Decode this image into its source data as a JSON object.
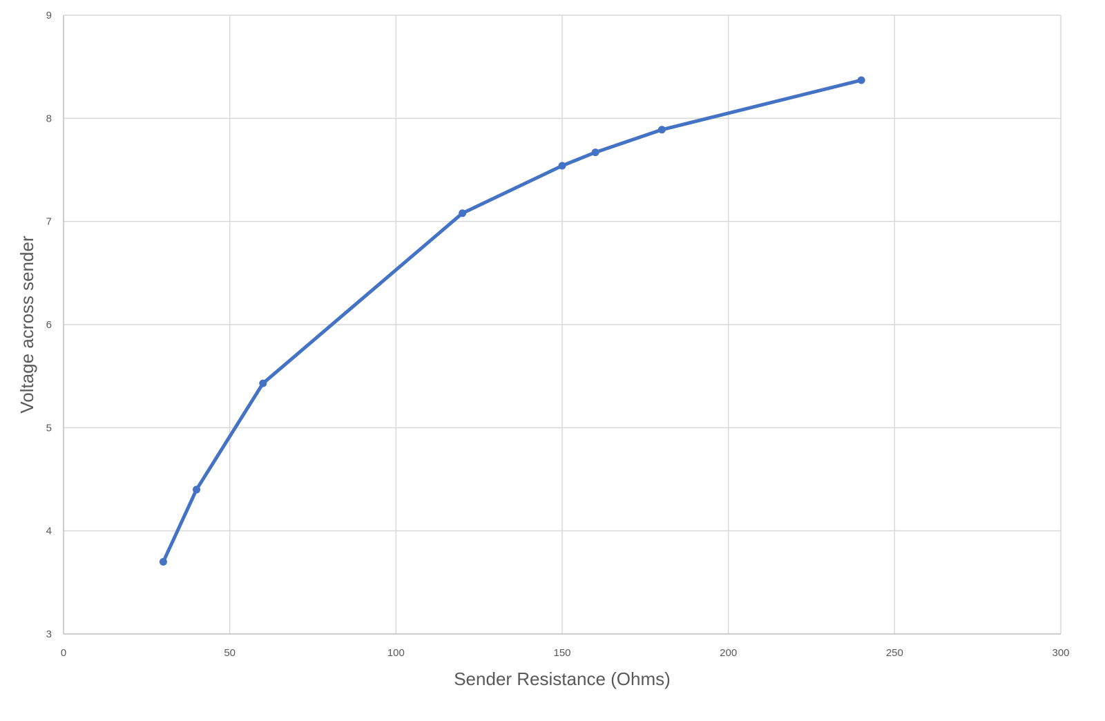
{
  "chart_data": {
    "type": "line",
    "title": "",
    "xlabel": "Sender Resistance (Ohms)",
    "ylabel": "Voltage across sender",
    "xlim": [
      0,
      300
    ],
    "ylim": [
      3,
      9
    ],
    "x_ticks": [
      0,
      50,
      100,
      150,
      200,
      250,
      300
    ],
    "y_ticks": [
      3,
      4,
      5,
      6,
      7,
      8,
      9
    ],
    "grid": true,
    "legend": "none",
    "series": [
      {
        "color": "#4472c4",
        "x": [
          30,
          40,
          60,
          120,
          150,
          160,
          180,
          240
        ],
        "y": [
          3.7,
          4.4,
          5.43,
          7.08,
          7.54,
          7.67,
          7.89,
          8.37
        ]
      }
    ]
  }
}
